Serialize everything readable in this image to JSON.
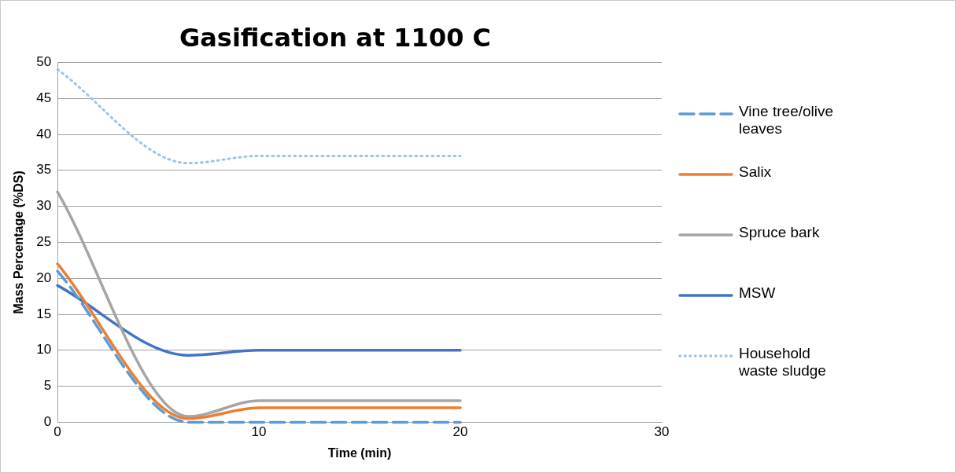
{
  "chart_data": {
    "type": "line",
    "title": "Gasification at 1100 C",
    "xlabel": "Time (min)",
    "ylabel": "Mass Percentage (%DS)",
    "x": [
      0,
      6.5,
      10,
      20
    ],
    "xlim": [
      0,
      30
    ],
    "xticks": [
      0,
      10,
      20,
      30
    ],
    "ylim": [
      0,
      50
    ],
    "yticks": [
      0,
      5,
      10,
      15,
      20,
      25,
      30,
      35,
      40,
      45,
      50
    ],
    "grid": "y",
    "legend": "right",
    "marker": "none",
    "series": [
      {
        "name": "Vine tree/olive leaves",
        "color": "#5b9bd5",
        "line_style": "dashed",
        "values": [
          21,
          0,
          0,
          0
        ]
      },
      {
        "name": "Salix",
        "color": "#ed7d31",
        "line_style": "solid",
        "values": [
          22,
          0.5,
          2,
          2
        ]
      },
      {
        "name": "Spruce bark",
        "color": "#a5a5a5",
        "line_style": "solid",
        "values": [
          32,
          0.8,
          3,
          3
        ]
      },
      {
        "name": "MSW",
        "color": "#4472c4",
        "line_style": "solid",
        "values": [
          19,
          9.3,
          10,
          10
        ]
      },
      {
        "name": "Household waste sludge",
        "color": "#9dc3e6",
        "line_style": "dotted",
        "values": [
          49,
          36,
          37,
          37
        ]
      }
    ]
  }
}
